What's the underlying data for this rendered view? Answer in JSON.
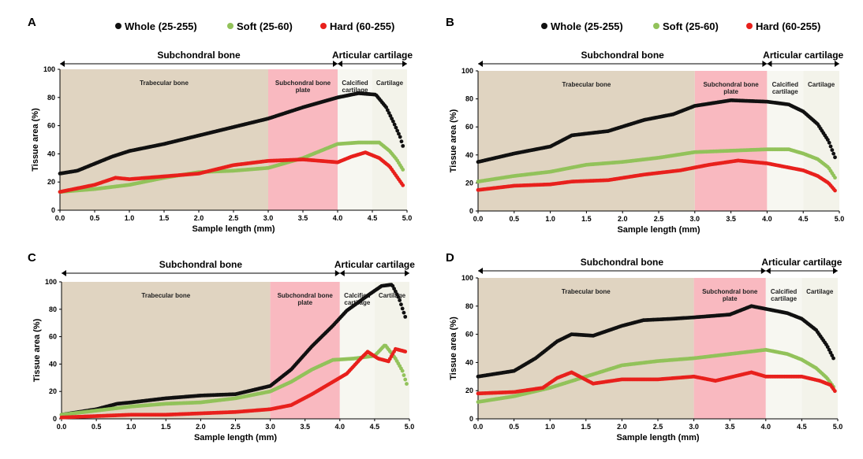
{
  "figure": {
    "legend": {
      "whole": "Whole (25-255)",
      "soft": "Soft (25-60)",
      "hard": "Hard (60-255)"
    },
    "regions": {
      "subchondral": "Subchondral bone",
      "articular": "Articular cartilage",
      "trabecular": "Trabecular bone",
      "plate_line1": "Subchondral bone",
      "plate_line2": "plate",
      "calcified_line1": "Calcified",
      "calcified_line2": "cartilage",
      "cartilage": "Cartilage"
    },
    "colors": {
      "whole": "#111111",
      "soft": "#92c25a",
      "hard": "#e8201c",
      "trabecular": "#e0d4c1",
      "plate": "#f9b9c0",
      "calcified": "#f7f7f1",
      "cartilage": "#f3f3ea"
    }
  },
  "chart_data": [
    {
      "panel": "A",
      "type": "scatter",
      "xlabel": "Sample length (mm)",
      "ylabel": "Tissue area (%)",
      "xlim": [
        0,
        5
      ],
      "ylim": [
        0,
        100
      ],
      "xticks": [
        "0.0",
        "0.5",
        "1.0",
        "1.5",
        "2.0",
        "2.5",
        "3.0",
        "3.5",
        "4.0",
        "4.5",
        "5.0"
      ],
      "yticks": [
        "0",
        "20",
        "40",
        "60",
        "80",
        "100"
      ],
      "series": [
        {
          "name": "Whole (25-255)",
          "key": "whole",
          "x": [
            0,
            0.25,
            0.5,
            0.75,
            1,
            1.5,
            2,
            2.5,
            3,
            3.5,
            4,
            4.3,
            4.55,
            4.7,
            4.8,
            4.9,
            4.95
          ],
          "y": [
            26,
            28,
            33,
            38,
            42,
            47,
            53,
            59,
            65,
            73,
            80,
            83,
            82,
            73,
            63,
            52,
            44
          ]
        },
        {
          "name": "Soft (25-60)",
          "key": "soft",
          "x": [
            0,
            0.5,
            1,
            1.5,
            2,
            2.5,
            3,
            3.5,
            4,
            4.3,
            4.6,
            4.75,
            4.85,
            4.95
          ],
          "y": [
            13,
            15,
            18,
            23,
            27,
            28,
            30,
            37,
            47,
            48,
            48,
            42,
            36,
            28
          ]
        },
        {
          "name": "Hard (60-255)",
          "key": "hard",
          "x": [
            0,
            0.5,
            0.8,
            1,
            1.5,
            2,
            2.5,
            3,
            3.5,
            4,
            4.2,
            4.4,
            4.6,
            4.75,
            4.85,
            4.95
          ],
          "y": [
            13,
            18,
            23,
            22,
            24,
            26,
            32,
            35,
            36,
            34,
            38,
            41,
            37,
            31,
            24,
            17
          ]
        }
      ]
    },
    {
      "panel": "B",
      "type": "scatter",
      "xlabel": "Sample length (mm)",
      "ylabel": "Tissue area (%)",
      "xlim": [
        0,
        5
      ],
      "ylim": [
        0,
        100
      ],
      "xticks": [
        "0.0",
        "0.5",
        "1.0",
        "1.5",
        "2.0",
        "2.5",
        "3.0",
        "3.5",
        "4.0",
        "4.5",
        "5.0"
      ],
      "yticks": [
        "0",
        "20",
        "40",
        "60",
        "80",
        "100"
      ],
      "series": [
        {
          "name": "Whole (25-255)",
          "key": "whole",
          "x": [
            0,
            0.5,
            1,
            1.3,
            1.8,
            2.3,
            2.7,
            3,
            3.5,
            4,
            4.3,
            4.5,
            4.7,
            4.85,
            4.95
          ],
          "y": [
            35,
            41,
            46,
            54,
            57,
            65,
            69,
            75,
            79,
            78,
            76,
            71,
            62,
            50,
            37
          ]
        },
        {
          "name": "Soft (25-60)",
          "key": "soft",
          "x": [
            0,
            0.5,
            1,
            1.5,
            2,
            2.5,
            3,
            3.5,
            4,
            4.3,
            4.5,
            4.7,
            4.85,
            4.95
          ],
          "y": [
            21,
            25,
            28,
            33,
            35,
            38,
            42,
            43,
            44,
            44,
            41,
            37,
            31,
            23
          ]
        },
        {
          "name": "Hard (60-255)",
          "key": "hard",
          "x": [
            0,
            0.5,
            1,
            1.3,
            1.8,
            2.3,
            2.8,
            3.2,
            3.6,
            4,
            4.2,
            4.5,
            4.7,
            4.85,
            4.95
          ],
          "y": [
            15,
            18,
            19,
            21,
            22,
            26,
            29,
            33,
            36,
            34,
            32,
            29,
            25,
            20,
            14
          ]
        }
      ]
    },
    {
      "panel": "C",
      "type": "scatter",
      "xlabel": "Sample length (mm)",
      "ylabel": "Tissue area (%)",
      "xlim": [
        0,
        5
      ],
      "ylim": [
        0,
        100
      ],
      "xticks": [
        "0.0",
        "0.5",
        "1.0",
        "1.5",
        "2.0",
        "2.5",
        "3.0",
        "3.5",
        "4.0",
        "4.5",
        "5.0"
      ],
      "yticks": [
        "0",
        "20",
        "40",
        "60",
        "80",
        "100"
      ],
      "series": [
        {
          "name": "Whole (25-255)",
          "key": "whole",
          "x": [
            0,
            0.5,
            0.8,
            1,
            1.5,
            2,
            2.5,
            3,
            3.3,
            3.6,
            3.9,
            4.1,
            4.4,
            4.6,
            4.75,
            4.85,
            4.95
          ],
          "y": [
            3,
            7,
            11,
            12,
            15,
            17,
            18,
            24,
            36,
            53,
            68,
            79,
            90,
            97,
            98,
            88,
            73
          ]
        },
        {
          "name": "Soft (25-60)",
          "key": "soft",
          "x": [
            0,
            0.5,
            1,
            1.5,
            2,
            2.5,
            3,
            3.3,
            3.6,
            3.9,
            4.2,
            4.5,
            4.65,
            4.8,
            4.9,
            4.97
          ],
          "y": [
            3,
            6,
            9,
            11,
            12,
            15,
            20,
            27,
            36,
            43,
            44,
            46,
            54,
            44,
            35,
            24
          ]
        },
        {
          "name": "Hard (60-255)",
          "key": "hard",
          "x": [
            0,
            0.5,
            1,
            1.5,
            2,
            2.5,
            3,
            3.3,
            3.6,
            3.9,
            4.1,
            4.3,
            4.4,
            4.55,
            4.7,
            4.8,
            4.95
          ],
          "y": [
            1,
            2,
            3,
            3,
            4,
            5,
            7,
            10,
            18,
            27,
            33,
            44,
            49,
            44,
            42,
            51,
            49
          ]
        }
      ]
    },
    {
      "panel": "D",
      "type": "scatter",
      "xlabel": "Sample length (mm)",
      "ylabel": "Tissue area (%)",
      "xlim": [
        0,
        5
      ],
      "ylim": [
        0,
        100
      ],
      "xticks": [
        "0.0",
        "0.5",
        "1.0",
        "1.5",
        "2.0",
        "2.5",
        "3.0",
        "3.5",
        "4.0",
        "4.5",
        "5.0"
      ],
      "yticks": [
        "0",
        "20",
        "40",
        "60",
        "80",
        "100"
      ],
      "series": [
        {
          "name": "Whole (25-255)",
          "key": "whole",
          "x": [
            0,
            0.5,
            0.8,
            1.1,
            1.3,
            1.6,
            2,
            2.3,
            2.7,
            3,
            3.5,
            3.8,
            4,
            4.3,
            4.5,
            4.7,
            4.85,
            4.95
          ],
          "y": [
            30,
            34,
            43,
            55,
            60,
            59,
            66,
            70,
            71,
            72,
            74,
            80,
            78,
            75,
            71,
            63,
            52,
            42
          ]
        },
        {
          "name": "Soft (25-60)",
          "key": "soft",
          "x": [
            0,
            0.5,
            1,
            1.5,
            2,
            2.5,
            3,
            3.5,
            4,
            4.3,
            4.5,
            4.7,
            4.85,
            4.95
          ],
          "y": [
            12,
            16,
            22,
            30,
            38,
            41,
            43,
            46,
            49,
            46,
            42,
            36,
            29,
            22
          ]
        },
        {
          "name": "Hard (60-255)",
          "key": "hard",
          "x": [
            0,
            0.5,
            0.9,
            1.1,
            1.3,
            1.6,
            2,
            2.5,
            3,
            3.3,
            3.8,
            4,
            4.5,
            4.75,
            4.9,
            4.97
          ],
          "y": [
            18,
            19,
            22,
            29,
            33,
            25,
            28,
            28,
            30,
            27,
            33,
            30,
            30,
            27,
            24,
            19
          ]
        }
      ]
    }
  ]
}
